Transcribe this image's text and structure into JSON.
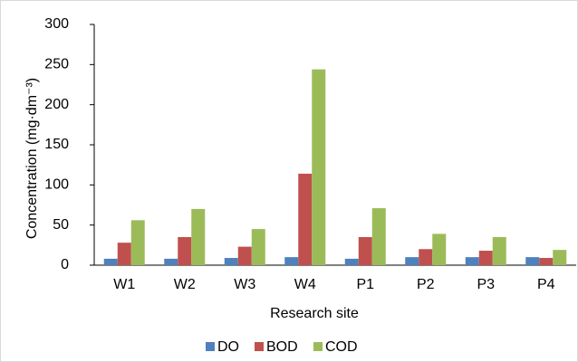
{
  "chart_data": {
    "type": "bar",
    "x_label": "Research site",
    "y_label": "Concentration (mg·dm⁻³)",
    "categories": [
      "W1",
      "W2",
      "W3",
      "W4",
      "P1",
      "P2",
      "P3",
      "P4"
    ],
    "series": [
      {
        "name": "DO",
        "color": "#4e81bd",
        "values": [
          8,
          8,
          9,
          10,
          8,
          10,
          10,
          10
        ]
      },
      {
        "name": "BOD",
        "color": "#c0504d",
        "values": [
          28,
          35,
          23,
          114,
          35,
          20,
          18,
          9
        ]
      },
      {
        "name": "COD",
        "color": "#9bbb59",
        "values": [
          56,
          70,
          45,
          244,
          71,
          39,
          35,
          19
        ]
      }
    ],
    "ylim": [
      0,
      300
    ],
    "yticks": [
      0,
      50,
      100,
      150,
      200,
      250,
      300
    ],
    "legend": "bottom"
  }
}
